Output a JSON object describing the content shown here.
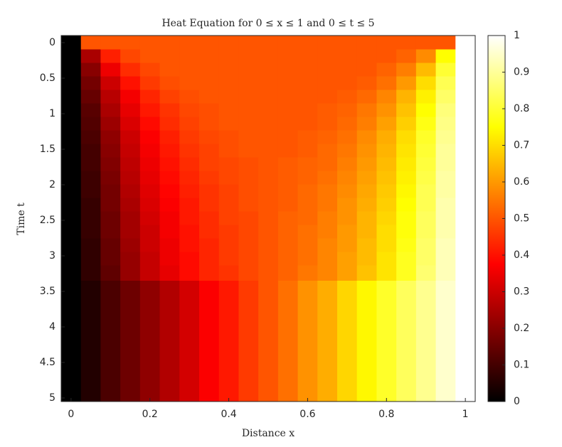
{
  "chart_data": {
    "type": "heatmap",
    "title": "Heat Equation for 0 ≤ x ≤ 1 and 0 ≤ t ≤ 5",
    "xlabel": "Distance x",
    "ylabel": "Time t",
    "colormap": "hot",
    "y_reversed": true,
    "x": [
      0,
      0.05,
      0.1,
      0.15,
      0.2,
      0.25,
      0.3,
      0.35,
      0.4,
      0.45,
      0.5,
      0.55,
      0.6,
      0.65,
      0.7,
      0.75,
      0.8,
      0.85,
      0.9,
      0.95,
      1
    ],
    "y": [
      0,
      0.19,
      0.38,
      0.57,
      0.76,
      0.95,
      1.14,
      1.33,
      1.52,
      1.71,
      1.9,
      2.09,
      2.28,
      2.47,
      2.66,
      2.85,
      3.04,
      3.23,
      3.47
    ],
    "z": [
      [
        0,
        0.5,
        0.5,
        0.5,
        0.5,
        0.5,
        0.5,
        0.5,
        0.5,
        0.5,
        0.5,
        0.5,
        0.5,
        0.5,
        0.5,
        0.5,
        0.5,
        0.5,
        0.5,
        0.5,
        1
      ],
      [
        0,
        0.25,
        0.42,
        0.48,
        0.5,
        0.5,
        0.5,
        0.5,
        0.5,
        0.5,
        0.5,
        0.5,
        0.5,
        0.5,
        0.5,
        0.5,
        0.5,
        0.52,
        0.58,
        0.75,
        1
      ],
      [
        0,
        0.2,
        0.35,
        0.44,
        0.48,
        0.5,
        0.5,
        0.5,
        0.5,
        0.5,
        0.5,
        0.5,
        0.5,
        0.5,
        0.5,
        0.5,
        0.52,
        0.56,
        0.65,
        0.8,
        1
      ],
      [
        0,
        0.17,
        0.3,
        0.4,
        0.46,
        0.49,
        0.5,
        0.5,
        0.5,
        0.5,
        0.5,
        0.5,
        0.5,
        0.5,
        0.5,
        0.51,
        0.54,
        0.6,
        0.7,
        0.83,
        1
      ],
      [
        0,
        0.15,
        0.27,
        0.36,
        0.43,
        0.47,
        0.49,
        0.5,
        0.5,
        0.5,
        0.5,
        0.5,
        0.5,
        0.5,
        0.51,
        0.53,
        0.57,
        0.64,
        0.73,
        0.85,
        1
      ],
      [
        0,
        0.13,
        0.25,
        0.34,
        0.41,
        0.45,
        0.48,
        0.49,
        0.5,
        0.5,
        0.5,
        0.5,
        0.5,
        0.51,
        0.52,
        0.55,
        0.59,
        0.66,
        0.75,
        0.87,
        1
      ],
      [
        0,
        0.12,
        0.23,
        0.32,
        0.39,
        0.44,
        0.47,
        0.49,
        0.5,
        0.5,
        0.5,
        0.5,
        0.5,
        0.51,
        0.53,
        0.56,
        0.61,
        0.68,
        0.77,
        0.88,
        1
      ],
      [
        0,
        0.11,
        0.21,
        0.3,
        0.37,
        0.42,
        0.46,
        0.48,
        0.49,
        0.5,
        0.5,
        0.5,
        0.51,
        0.52,
        0.54,
        0.58,
        0.63,
        0.7,
        0.79,
        0.89,
        1
      ],
      [
        0,
        0.1,
        0.2,
        0.29,
        0.36,
        0.41,
        0.45,
        0.47,
        0.49,
        0.5,
        0.5,
        0.5,
        0.51,
        0.53,
        0.55,
        0.59,
        0.64,
        0.71,
        0.8,
        0.9,
        1
      ],
      [
        0,
        0.1,
        0.19,
        0.28,
        0.35,
        0.4,
        0.44,
        0.47,
        0.48,
        0.49,
        0.5,
        0.51,
        0.52,
        0.53,
        0.56,
        0.6,
        0.65,
        0.72,
        0.81,
        0.9,
        1
      ],
      [
        0,
        0.09,
        0.18,
        0.27,
        0.34,
        0.39,
        0.43,
        0.46,
        0.48,
        0.49,
        0.5,
        0.51,
        0.52,
        0.54,
        0.57,
        0.61,
        0.66,
        0.73,
        0.82,
        0.91,
        1
      ],
      [
        0,
        0.09,
        0.17,
        0.26,
        0.33,
        0.38,
        0.42,
        0.45,
        0.47,
        0.49,
        0.5,
        0.51,
        0.53,
        0.55,
        0.58,
        0.62,
        0.67,
        0.74,
        0.83,
        0.91,
        1
      ],
      [
        0,
        0.08,
        0.17,
        0.25,
        0.32,
        0.37,
        0.41,
        0.45,
        0.47,
        0.49,
        0.5,
        0.51,
        0.53,
        0.55,
        0.59,
        0.63,
        0.68,
        0.75,
        0.83,
        0.92,
        1
      ],
      [
        0,
        0.08,
        0.16,
        0.24,
        0.31,
        0.36,
        0.41,
        0.44,
        0.47,
        0.48,
        0.5,
        0.52,
        0.53,
        0.56,
        0.59,
        0.64,
        0.69,
        0.76,
        0.84,
        0.92,
        1
      ],
      [
        0,
        0.08,
        0.16,
        0.24,
        0.3,
        0.36,
        0.4,
        0.44,
        0.46,
        0.48,
        0.5,
        0.52,
        0.54,
        0.56,
        0.6,
        0.64,
        0.7,
        0.76,
        0.84,
        0.92,
        1
      ],
      [
        0,
        0.07,
        0.15,
        0.23,
        0.3,
        0.35,
        0.4,
        0.43,
        0.46,
        0.48,
        0.5,
        0.52,
        0.54,
        0.57,
        0.6,
        0.65,
        0.7,
        0.77,
        0.85,
        0.93,
        1
      ],
      [
        0,
        0.07,
        0.15,
        0.22,
        0.29,
        0.35,
        0.39,
        0.43,
        0.46,
        0.48,
        0.5,
        0.52,
        0.54,
        0.57,
        0.61,
        0.65,
        0.71,
        0.78,
        0.85,
        0.93,
        1
      ],
      [
        0,
        0.07,
        0.14,
        0.22,
        0.29,
        0.34,
        0.39,
        0.43,
        0.45,
        0.48,
        0.5,
        0.52,
        0.55,
        0.57,
        0.61,
        0.66,
        0.71,
        0.78,
        0.86,
        0.93,
        1
      ],
      [
        0,
        0.05,
        0.11,
        0.16,
        0.21,
        0.26,
        0.31,
        0.37,
        0.41,
        0.46,
        0.5,
        0.54,
        0.59,
        0.63,
        0.69,
        0.74,
        0.79,
        0.84,
        0.89,
        0.95,
        1
      ]
    ],
    "xlim": [
      -0.025,
      1.025
    ],
    "xticks": [
      0,
      0.2,
      0.4,
      0.6,
      0.8,
      1
    ],
    "ylim": [
      -0.1,
      5.05
    ],
    "yticks": [
      0,
      0.5,
      1,
      1.5,
      2,
      2.5,
      3,
      3.5,
      4,
      4.5,
      5
    ],
    "clim": [
      0,
      1
    ],
    "cticks": [
      0,
      0.1,
      0.2,
      0.3,
      0.4,
      0.5,
      0.6,
      0.7,
      0.8,
      0.9,
      1
    ]
  }
}
